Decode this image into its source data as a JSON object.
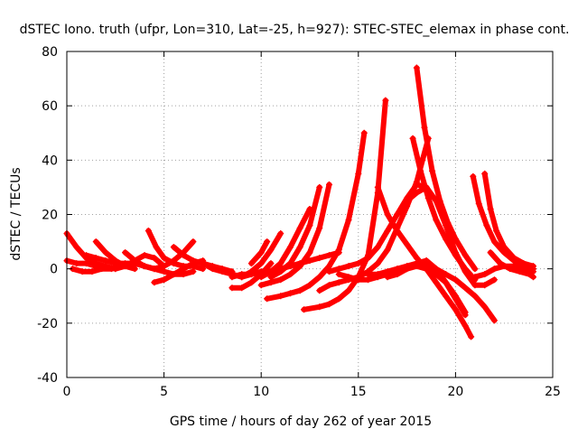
{
  "chart_data": {
    "type": "scatter",
    "title": "dSTEC Iono. truth (ufpr, Lon=310, Lat=-25, h=927): STEC-STEC_elemax in phase cont.",
    "xlabel": "GPS time / hours of day 262 of year 2015",
    "ylabel": "dSTEC  / TECUs",
    "xlim": [
      0,
      25
    ],
    "ylim": [
      -40,
      80
    ],
    "xticks": [
      "0",
      "5",
      "10",
      "15",
      "20",
      "25"
    ],
    "yticks": [
      "-40",
      "-20",
      "0",
      "20",
      "40",
      "60",
      "80"
    ],
    "grid": true,
    "marker": "+",
    "color": "#ff0000",
    "series": [
      {
        "x": [
          0.0,
          0.5,
          1.0,
          1.5,
          2.0,
          2.5
        ],
        "y": [
          13,
          8,
          4,
          2,
          1,
          0
        ]
      },
      {
        "x": [
          0.0,
          0.5,
          1.0,
          1.5,
          2.0
        ],
        "y": [
          3,
          2,
          2,
          1,
          0.5
        ]
      },
      {
        "x": [
          0.3,
          0.8,
          1.3,
          1.8,
          2.3,
          2.8,
          3.3
        ],
        "y": [
          0,
          -1,
          -1,
          0,
          0,
          1,
          1
        ]
      },
      {
        "x": [
          1.0,
          1.5,
          2.0,
          2.5,
          3.0,
          3.5,
          4.0,
          4.5
        ],
        "y": [
          5,
          4,
          3,
          2,
          2,
          2,
          1,
          0
        ]
      },
      {
        "x": [
          1.5,
          2.0,
          2.5,
          3.0,
          3.5
        ],
        "y": [
          10,
          6,
          3,
          1,
          0
        ]
      },
      {
        "x": [
          2.5,
          3.0,
          3.5,
          4.0,
          4.5,
          5.0
        ],
        "y": [
          0,
          1,
          3,
          5,
          4,
          1
        ]
      },
      {
        "x": [
          3.0,
          3.5,
          4.0,
          4.5,
          5.0,
          5.5,
          6.0,
          6.5
        ],
        "y": [
          6,
          3,
          1,
          0,
          -1,
          -2,
          -2,
          -1
        ]
      },
      {
        "x": [
          4.2,
          4.6,
          5.0,
          5.5,
          6.0,
          6.5,
          7.0
        ],
        "y": [
          14,
          8,
          4,
          2,
          1,
          1,
          0
        ]
      },
      {
        "x": [
          4.5,
          5.0,
          5.5,
          6.0,
          6.5,
          7.0
        ],
        "y": [
          -5,
          -4,
          -2,
          0,
          2,
          3
        ]
      },
      {
        "x": [
          3.5,
          4.0,
          4.5,
          5.0,
          5.5,
          6.0,
          6.5
        ],
        "y": [
          2,
          1,
          0,
          1,
          3,
          6,
          10
        ]
      },
      {
        "x": [
          5.5,
          6.0,
          6.5,
          7.0,
          7.5,
          8.0,
          8.5
        ],
        "y": [
          8,
          5,
          3,
          2,
          1,
          0,
          -1
        ]
      },
      {
        "x": [
          7.0,
          7.5,
          8.0,
          8.5,
          9.0,
          9.5
        ],
        "y": [
          2,
          0,
          -1,
          -2,
          -3,
          -2
        ]
      },
      {
        "x": [
          8.5,
          9.0,
          9.5,
          10.0,
          10.5
        ],
        "y": [
          -7,
          -7,
          -5,
          -2,
          2
        ]
      },
      {
        "x": [
          9.0,
          9.5,
          10.0,
          10.5,
          11.0
        ],
        "y": [
          -3,
          -1,
          2,
          7,
          13
        ]
      },
      {
        "x": [
          9.5,
          10.0,
          10.3
        ],
        "y": [
          2,
          6,
          10
        ]
      },
      {
        "x": [
          8.5,
          9.0,
          9.5,
          10.0,
          10.5,
          11.0,
          11.5,
          12.0,
          12.5,
          13.0,
          13.5,
          14.0
        ],
        "y": [
          -3,
          -2,
          -2,
          -1,
          -1,
          0,
          1,
          2,
          3,
          4,
          5,
          6
        ]
      },
      {
        "x": [
          10.0,
          10.5,
          11.0,
          11.5,
          12.0,
          12.5
        ],
        "y": [
          -3,
          -1,
          2,
          8,
          15,
          22
        ]
      },
      {
        "x": [
          10.5,
          11.0,
          11.5,
          12.0,
          12.5,
          13.0
        ],
        "y": [
          -3,
          -1,
          2,
          8,
          16,
          30
        ]
      },
      {
        "x": [
          10.0,
          10.5,
          11.0,
          11.5,
          12.0,
          12.5,
          13.0,
          13.5
        ],
        "y": [
          -6,
          -5,
          -4,
          -2,
          1,
          6,
          15,
          31
        ]
      },
      {
        "x": [
          10.3,
          11.0,
          11.5,
          12.0,
          12.5,
          13.0,
          13.5,
          14.0,
          14.5,
          15.0,
          15.3
        ],
        "y": [
          -11,
          -10,
          -9,
          -8,
          -6,
          -3,
          1,
          7,
          18,
          35,
          50
        ]
      },
      {
        "x": [
          12.2,
          13.0,
          13.5,
          14.0,
          14.5,
          15.0,
          15.5,
          16.0,
          16.4
        ],
        "y": [
          -15,
          -14,
          -13,
          -11,
          -8,
          -3,
          5,
          28,
          62
        ]
      },
      {
        "x": [
          13.0,
          13.5,
          14.0,
          14.5,
          15.0,
          15.5,
          16.0,
          16.5,
          17.0,
          17.5,
          18.0,
          18.3,
          18.6
        ],
        "y": [
          -8,
          -6,
          -5,
          -4,
          -3,
          -1,
          2,
          7,
          15,
          23,
          32,
          40,
          48
        ]
      },
      {
        "x": [
          13.5,
          14.0,
          14.5,
          15.0,
          15.5,
          16.0,
          16.5,
          17.0,
          17.5,
          18.0,
          18.5
        ],
        "y": [
          -1,
          0,
          1,
          2,
          4,
          8,
          14,
          20,
          25,
          28,
          30
        ]
      },
      {
        "x": [
          14.0,
          14.5,
          15.0,
          15.5,
          16.0,
          16.5,
          17.0,
          17.5,
          18.0,
          18.5,
          19.0,
          19.5,
          20.0,
          20.5
        ],
        "y": [
          -2,
          -3,
          -4,
          -4,
          -3,
          -2,
          -1,
          0,
          1,
          0,
          -2,
          -5,
          -10,
          -16
        ]
      },
      {
        "x": [
          15.5,
          16.0,
          16.5,
          17.0,
          17.5,
          18.0,
          18.5
        ],
        "y": [
          -2,
          -2,
          -1,
          0,
          1,
          2,
          3
        ]
      },
      {
        "x": [
          16.0,
          16.5,
          17.0,
          17.5,
          18.0,
          18.5,
          19.0,
          19.5,
          20.0,
          20.5,
          20.8
        ],
        "y": [
          30,
          20,
          14,
          9,
          4,
          0,
          -5,
          -10,
          -15,
          -21,
          -25
        ]
      },
      {
        "x": [
          16.5,
          17.0,
          17.5,
          18.0,
          18.5,
          19.0,
          19.5,
          20.0,
          20.5
        ],
        "y": [
          -3,
          -2,
          0,
          2,
          3,
          0,
          -5,
          -11,
          -17
        ]
      },
      {
        "x": [
          17.8,
          18.2,
          18.6,
          19.0,
          19.5,
          20.0,
          20.5,
          21.0
        ],
        "y": [
          48,
          36,
          26,
          18,
          11,
          5,
          0,
          -4
        ]
      },
      {
        "x": [
          18.0,
          18.4,
          18.8,
          19.2,
          19.6,
          20.0,
          20.5,
          21.0
        ],
        "y": [
          74,
          52,
          36,
          25,
          17,
          11,
          5,
          0
        ]
      },
      {
        "x": [
          18.5,
          19.0,
          19.5,
          20.0,
          20.5,
          21.0,
          21.5,
          22.0
        ],
        "y": [
          2,
          0,
          -2,
          -4,
          -7,
          -10,
          -14,
          -19
        ]
      },
      {
        "x": [
          17.0,
          17.5,
          18.0,
          18.5,
          19.0,
          19.5,
          20.0,
          20.5,
          21.0,
          21.5,
          22.0
        ],
        "y": [
          20,
          26,
          31,
          30,
          25,
          16,
          6,
          -1,
          -6,
          -6,
          -4
        ]
      },
      {
        "x": [
          20.9,
          21.2,
          21.6,
          22.0,
          22.5,
          23.0,
          23.5,
          24.0
        ],
        "y": [
          34,
          24,
          16,
          10,
          6,
          3,
          1,
          0
        ]
      },
      {
        "x": [
          21.5,
          21.8,
          22.1,
          22.5,
          23.0,
          23.5,
          24.0
        ],
        "y": [
          35,
          22,
          14,
          8,
          4,
          2,
          1
        ]
      },
      {
        "x": [
          21.0,
          21.5,
          22.0,
          22.5,
          23.0,
          23.5,
          24.0
        ],
        "y": [
          -3,
          -2,
          0,
          1,
          1,
          0,
          -1
        ]
      },
      {
        "x": [
          21.8,
          22.3,
          22.8,
          23.3,
          23.8,
          24.0
        ],
        "y": [
          6,
          2,
          0,
          -1,
          -2,
          -3
        ]
      }
    ]
  }
}
